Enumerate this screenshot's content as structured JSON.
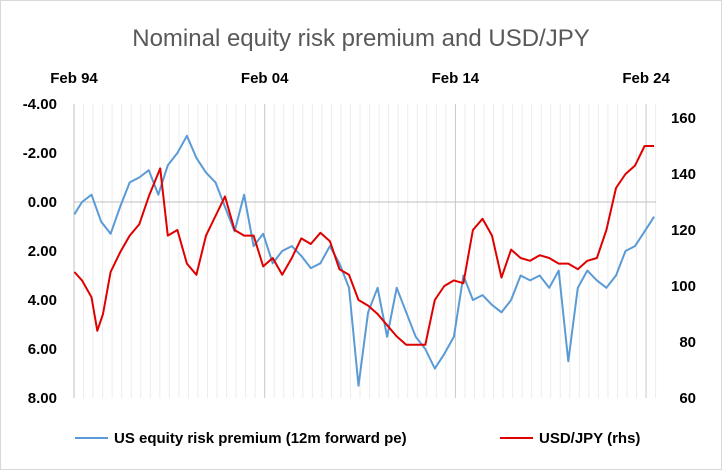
{
  "chart_data": {
    "type": "line",
    "title": "Nominal equity risk premium and USD/JPY",
    "x_ticks": [
      "Feb 94",
      "Feb 04",
      "Feb 14",
      "Feb 24"
    ],
    "x_range": [
      1994.08,
      2024.6
    ],
    "y_left": {
      "range": [
        -4,
        8
      ],
      "reversed": true,
      "ticks": [
        -4,
        -2,
        0,
        2,
        4,
        6,
        8
      ],
      "tick_labels": [
        "-4.00",
        "-2.00",
        "0.00",
        "2.00",
        "4.00",
        "6.00",
        "8.00"
      ]
    },
    "y_right": {
      "range": [
        60,
        165
      ],
      "ticks": [
        60,
        80,
        100,
        120,
        140,
        160
      ],
      "tick_labels": [
        "60",
        "80",
        "100",
        "120",
        "140",
        "160"
      ]
    },
    "grid": "vertical",
    "legend_position": "bottom",
    "series": [
      {
        "name": "US equity risk premium (12m forward pe)",
        "axis": "left",
        "color": "#5b9bd5",
        "x": [
          1994.1,
          1994.5,
          1995.0,
          1995.5,
          1996.0,
          1996.5,
          1997.0,
          1997.5,
          1998.0,
          1998.5,
          1999.0,
          1999.5,
          2000.0,
          2000.5,
          2001.0,
          2001.5,
          2002.0,
          2002.5,
          2003.0,
          2003.5,
          2004.0,
          2004.5,
          2005.0,
          2005.5,
          2006.0,
          2006.5,
          2007.0,
          2007.5,
          2008.0,
          2008.5,
          2009.0,
          2009.5,
          2010.0,
          2010.5,
          2011.0,
          2011.5,
          2012.0,
          2012.5,
          2013.0,
          2013.5,
          2014.0,
          2014.5,
          2015.0,
          2015.5,
          2016.0,
          2016.5,
          2017.0,
          2017.5,
          2018.0,
          2018.5,
          2019.0,
          2019.5,
          2020.0,
          2020.5,
          2021.0,
          2021.5,
          2022.0,
          2022.5,
          2023.0,
          2023.5,
          2024.0,
          2024.5
        ],
        "values": [
          0.5,
          0.0,
          -0.3,
          0.8,
          1.3,
          0.2,
          -0.8,
          -1.0,
          -1.3,
          -0.3,
          -1.5,
          -2.0,
          -2.7,
          -1.8,
          -1.2,
          -0.8,
          0.2,
          1.2,
          -0.3,
          1.8,
          1.3,
          2.5,
          2.0,
          1.8,
          2.2,
          2.7,
          2.5,
          1.8,
          2.5,
          3.5,
          7.5,
          4.5,
          3.5,
          5.5,
          3.5,
          4.5,
          5.5,
          6.0,
          6.8,
          6.2,
          5.5,
          3.0,
          4.0,
          3.8,
          4.2,
          4.5,
          4.0,
          3.0,
          3.2,
          3.0,
          3.5,
          2.8,
          6.5,
          3.5,
          2.8,
          3.2,
          3.5,
          3.0,
          2.0,
          1.8,
          1.2,
          0.6
        ]
      },
      {
        "name": "USD/JPY (rhs)",
        "axis": "right",
        "color": "#e00000",
        "x": [
          1994.1,
          1994.5,
          1995.0,
          1995.3,
          1995.6,
          1996.0,
          1996.5,
          1997.0,
          1997.5,
          1998.0,
          1998.6,
          1999.0,
          1999.5,
          2000.0,
          2000.5,
          2001.0,
          2001.5,
          2002.0,
          2002.5,
          2003.0,
          2003.5,
          2004.0,
          2004.5,
          2005.0,
          2005.5,
          2006.0,
          2006.5,
          2007.0,
          2007.5,
          2008.0,
          2008.5,
          2009.0,
          2009.5,
          2010.0,
          2010.5,
          2011.0,
          2011.5,
          2012.0,
          2012.5,
          2013.0,
          2013.5,
          2014.0,
          2014.5,
          2015.0,
          2015.5,
          2016.0,
          2016.5,
          2017.0,
          2017.5,
          2018.0,
          2018.5,
          2019.0,
          2019.5,
          2020.0,
          2020.5,
          2021.0,
          2021.5,
          2022.0,
          2022.5,
          2023.0,
          2023.5,
          2024.0,
          2024.5
        ],
        "values": [
          105,
          102,
          96,
          84,
          90,
          105,
          112,
          118,
          122,
          132,
          142,
          118,
          120,
          108,
          104,
          118,
          125,
          132,
          120,
          118,
          118,
          107,
          110,
          104,
          110,
          117,
          115,
          119,
          116,
          106,
          104,
          95,
          93,
          90,
          86,
          82,
          79,
          79,
          79,
          95,
          100,
          102,
          101,
          120,
          124,
          118,
          103,
          113,
          110,
          109,
          111,
          110,
          108,
          108,
          106,
          109,
          110,
          120,
          135,
          140,
          143,
          150,
          150
        ]
      }
    ]
  },
  "legend": {
    "items": [
      {
        "label": "US equity risk premium (12m forward pe)",
        "color": "#5b9bd5"
      },
      {
        "label": "USD/JPY (rhs)",
        "color": "#e00000"
      }
    ]
  }
}
